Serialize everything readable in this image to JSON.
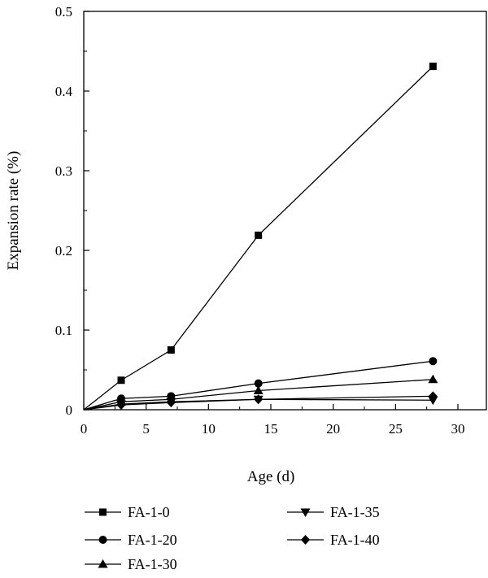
{
  "chart_data": {
    "type": "line",
    "xlabel": "Age (d)",
    "ylabel": "Expansion rate (%)",
    "xlim": [
      0,
      30
    ],
    "ylim": [
      0,
      0.5
    ],
    "xticks": [
      "0",
      "5",
      "10",
      "15",
      "20",
      "25",
      "30"
    ],
    "yticks": [
      "0",
      "0.1",
      "0.2",
      "0.3",
      "0.4",
      "0.5"
    ],
    "grid": false,
    "legend_position": "bottom",
    "series": [
      {
        "name": "FA-1-0",
        "marker": "square",
        "x": [
          0,
          3,
          7,
          14,
          28
        ],
        "y": [
          0,
          0.037,
          0.075,
          0.219,
          0.431
        ]
      },
      {
        "name": "FA-1-20",
        "marker": "circle",
        "x": [
          0,
          3,
          7,
          14,
          28
        ],
        "y": [
          0,
          0.014,
          0.017,
          0.033,
          0.061
        ]
      },
      {
        "name": "FA-1-30",
        "marker": "triangle-up",
        "x": [
          0,
          3,
          7,
          14,
          28
        ],
        "y": [
          0,
          0.01,
          0.013,
          0.024,
          0.038
        ]
      },
      {
        "name": "FA-1-35",
        "marker": "triangle-down",
        "x": [
          0,
          3,
          7,
          14,
          28
        ],
        "y": [
          0,
          0.007,
          0.01,
          0.013,
          0.012
        ]
      },
      {
        "name": "FA-1-40",
        "marker": "diamond",
        "x": [
          0,
          3,
          7,
          14,
          28
        ],
        "y": [
          0,
          0.006,
          0.009,
          0.013,
          0.017
        ]
      }
    ],
    "colors": {
      "line": "#000000",
      "marker": "#000000"
    }
  }
}
